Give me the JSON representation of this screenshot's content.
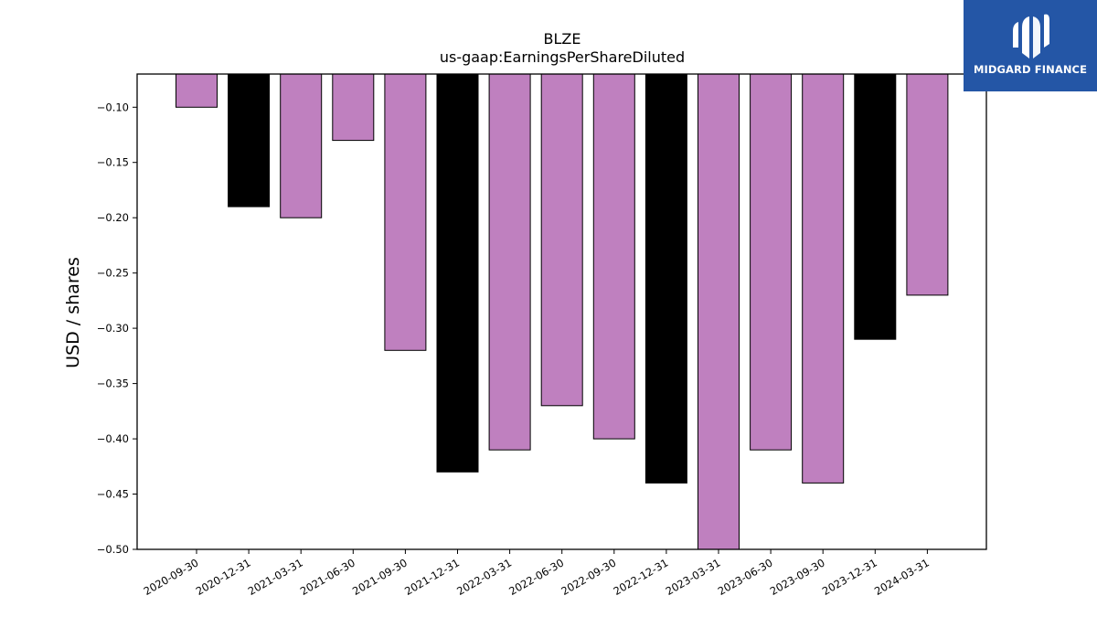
{
  "chart_data": {
    "type": "bar",
    "title": "BLZE",
    "subtitle": "us-gaap:EarningsPerShareDiluted",
    "ylabel": "USD / shares",
    "xlabel": "",
    "ylim": [
      -0.5,
      -0.07
    ],
    "yticks": [
      "−0.10",
      "−0.15",
      "−0.20",
      "−0.25",
      "−0.30",
      "−0.35",
      "−0.40",
      "−0.45",
      "−0.50"
    ],
    "ytick_values": [
      -0.1,
      -0.15,
      -0.2,
      -0.25,
      -0.3,
      -0.35,
      -0.4,
      -0.45,
      -0.5
    ],
    "categories": [
      "2020-09-30",
      "2020-12-31",
      "2021-03-31",
      "2021-06-30",
      "2021-09-30",
      "2021-12-31",
      "2022-03-31",
      "2022-06-30",
      "2022-09-30",
      "2022-12-31",
      "2023-03-31",
      "2023-06-30",
      "2023-09-30",
      "2023-12-31",
      "2024-03-31"
    ],
    "values": [
      -0.1,
      -0.19,
      -0.2,
      -0.13,
      -0.32,
      -0.43,
      -0.41,
      -0.37,
      -0.4,
      -0.44,
      -0.5,
      -0.41,
      -0.44,
      -0.31,
      -0.27
    ],
    "bar_colors": [
      "#bf80bf",
      "#000000",
      "#bf80bf",
      "#bf80bf",
      "#bf80bf",
      "#000000",
      "#bf80bf",
      "#bf80bf",
      "#bf80bf",
      "#000000",
      "#bf80bf",
      "#bf80bf",
      "#bf80bf",
      "#000000",
      "#bf80bf"
    ],
    "grid": false,
    "legend": "none"
  },
  "logo": {
    "text": "MIDGARD FINANCE",
    "color": "#2456a6"
  }
}
